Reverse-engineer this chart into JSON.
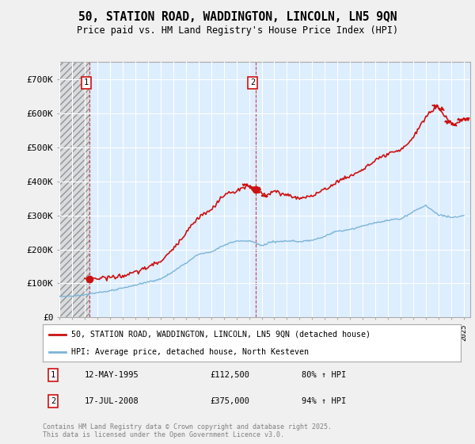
{
  "title_line1": "50, STATION ROAD, WADDINGTON, LINCOLN, LN5 9QN",
  "title_line2": "Price paid vs. HM Land Registry's House Price Index (HPI)",
  "ylim": [
    0,
    750000
  ],
  "yticks": [
    0,
    100000,
    200000,
    300000,
    400000,
    500000,
    600000,
    700000
  ],
  "ytick_labels": [
    "£0",
    "£100K",
    "£200K",
    "£300K",
    "£400K",
    "£500K",
    "£600K",
    "£700K"
  ],
  "hpi_color": "#7cb4d8",
  "price_color": "#cc1111",
  "legend_label_price": "50, STATION ROAD, WADDINGTON, LINCOLN, LN5 9QN (detached house)",
  "legend_label_hpi": "HPI: Average price, detached house, North Kesteven",
  "annotation1_label": "1",
  "annotation1_date": "12-MAY-1995",
  "annotation1_price": "£112,500",
  "annotation1_hpi": "80% ↑ HPI",
  "annotation2_label": "2",
  "annotation2_date": "17-JUL-2008",
  "annotation2_price": "£375,000",
  "annotation2_hpi": "94% ↑ HPI",
  "footnote": "Contains HM Land Registry data © Crown copyright and database right 2025.\nThis data is licensed under the Open Government Licence v3.0.",
  "background_color": "#f0f0f0",
  "plot_bg_color": "#ddeeff",
  "point1_x": 1995.37,
  "point1_y": 112500,
  "point2_x": 2008.54,
  "point2_y": 375000,
  "xmin": 1993.0,
  "xmax": 2025.5
}
